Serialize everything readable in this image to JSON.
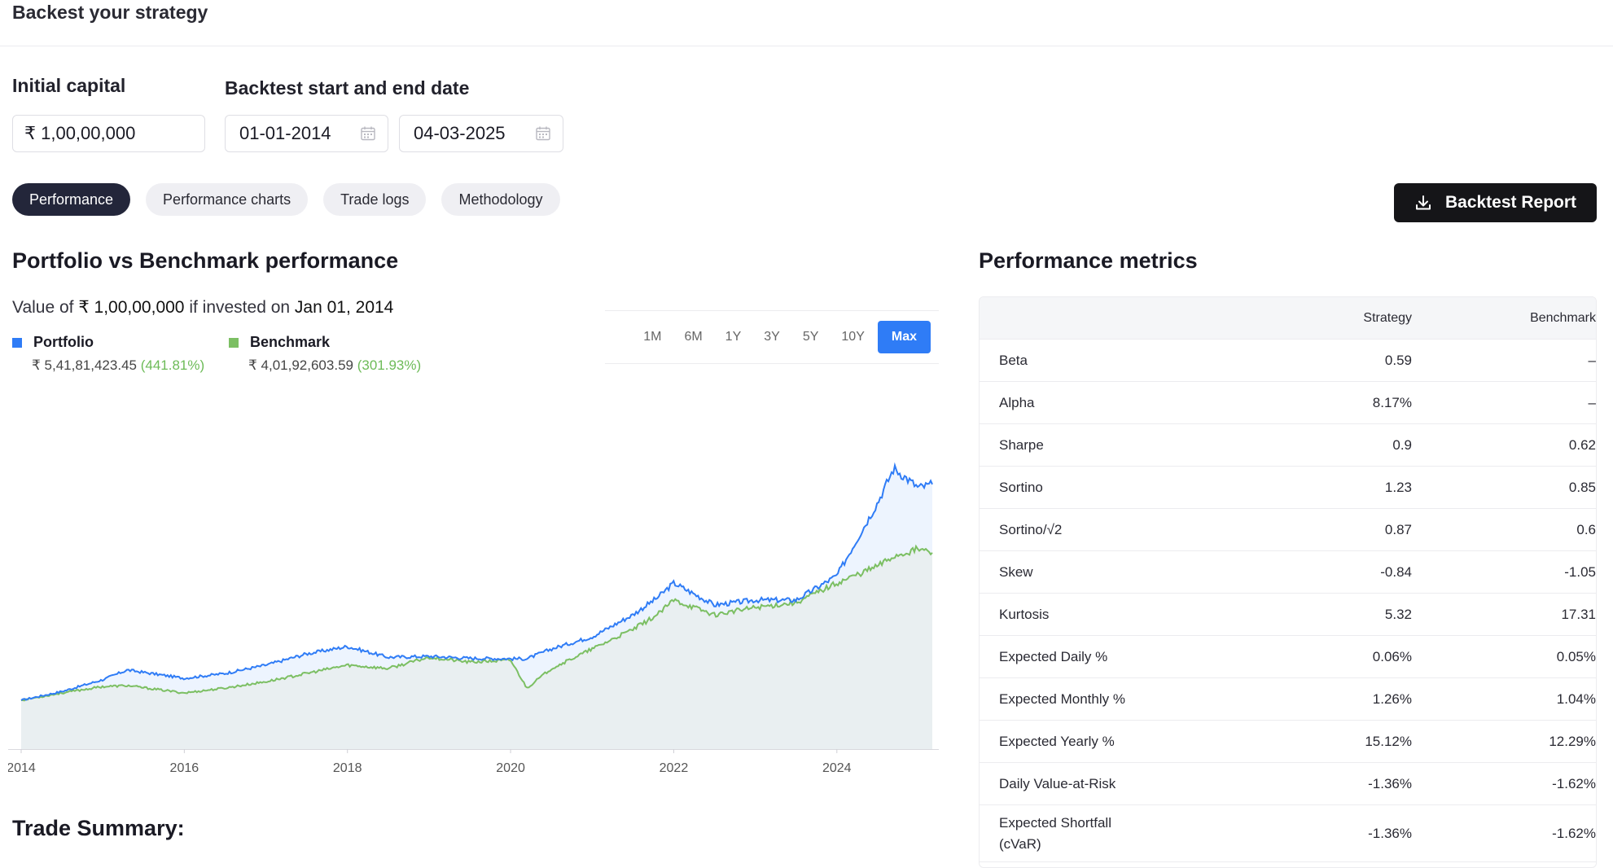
{
  "header": {
    "title": "Backest your strategy"
  },
  "form": {
    "capital_label": "Initial capital",
    "capital_value": "₹ 1,00,00,000",
    "date_label": "Backtest start and end date",
    "start_date": "01-01-2014",
    "end_date": "04-03-2025"
  },
  "tabs": [
    "Performance",
    "Performance charts",
    "Trade logs",
    "Methodology"
  ],
  "report_button": "Backtest Report",
  "performance": {
    "title": "Portfolio vs Benchmark performance",
    "sub_prefix": "Value of",
    "sub_amount": "₹ 1,00,00,000",
    "sub_middle": "if invested on",
    "sub_date": "Jan 01, 2014",
    "portfolio_name": "Portfolio",
    "portfolio_value": "₹ 5,41,81,423.45",
    "portfolio_pct": "(441.81%)",
    "benchmark_name": "Benchmark",
    "benchmark_value": "₹ 4,01,92,603.59",
    "benchmark_pct": "(301.93%)",
    "ranges": [
      "1M",
      "6M",
      "1Y",
      "3Y",
      "5Y",
      "10Y",
      "Max"
    ],
    "active_range": "Max",
    "colors": {
      "portfolio": "#2f7cf6",
      "benchmark": "#7cbf63"
    }
  },
  "chart_data": {
    "type": "line",
    "x_ticks": [
      "2014",
      "2016",
      "2018",
      "2020",
      "2022",
      "2024"
    ],
    "x_range": [
      2014.0,
      2025.17
    ],
    "series": [
      {
        "name": "Portfolio",
        "x": [
          2014.0,
          2014.5,
          2015.0,
          2015.3,
          2016.0,
          2016.5,
          2017.0,
          2017.5,
          2018.0,
          2018.5,
          2019.0,
          2019.5,
          2020.0,
          2020.2,
          2020.5,
          2021.0,
          2021.5,
          2021.8,
          2022.0,
          2022.5,
          2023.0,
          2023.5,
          2024.0,
          2024.5,
          2024.7,
          2025.0,
          2025.17
        ],
        "values": [
          1.0,
          1.18,
          1.42,
          1.62,
          1.45,
          1.55,
          1.72,
          1.95,
          2.1,
          1.88,
          1.9,
          1.86,
          1.85,
          1.85,
          2.05,
          2.3,
          2.75,
          3.1,
          3.4,
          2.95,
          3.05,
          3.05,
          3.55,
          5.05,
          5.75,
          5.35,
          5.42
        ]
      },
      {
        "name": "Benchmark",
        "x": [
          2014.0,
          2014.5,
          2015.0,
          2015.3,
          2016.0,
          2016.5,
          2017.0,
          2017.5,
          2018.0,
          2018.5,
          2019.0,
          2019.5,
          2020.0,
          2020.2,
          2020.5,
          2021.0,
          2021.5,
          2021.8,
          2022.0,
          2022.5,
          2023.0,
          2023.5,
          2024.0,
          2024.5,
          2024.7,
          2025.0,
          2025.17
        ],
        "values": [
          1.0,
          1.15,
          1.28,
          1.3,
          1.15,
          1.25,
          1.38,
          1.55,
          1.72,
          1.65,
          1.88,
          1.78,
          1.82,
          1.25,
          1.65,
          2.05,
          2.45,
          2.75,
          3.05,
          2.75,
          2.9,
          3.0,
          3.4,
          3.75,
          3.95,
          4.1,
          4.02
        ]
      }
    ]
  },
  "metrics": {
    "title": "Performance metrics",
    "col_strategy": "Strategy",
    "col_benchmark": "Benchmark",
    "rows": [
      [
        "Beta",
        "0.59",
        "–"
      ],
      [
        "Alpha",
        "8.17%",
        "–"
      ],
      [
        "Sharpe",
        "0.9",
        "0.62"
      ],
      [
        "Sortino",
        "1.23",
        "0.85"
      ],
      [
        "Sortino/√2",
        "0.87",
        "0.6"
      ],
      [
        "Skew",
        "-0.84",
        "-1.05"
      ],
      [
        "Kurtosis",
        "5.32",
        "17.31"
      ],
      [
        "Expected Daily %",
        "0.06%",
        "0.05%"
      ],
      [
        "Expected Monthly %",
        "1.26%",
        "1.04%"
      ],
      [
        "Expected Yearly %",
        "15.12%",
        "12.29%"
      ],
      [
        "Daily Value-at-Risk",
        "-1.36%",
        "-1.62%"
      ],
      [
        "Expected Shortfall (cVaR)",
        "-1.36%",
        "-1.62%"
      ]
    ]
  },
  "trade_summary": {
    "title": "Trade Summary:"
  }
}
